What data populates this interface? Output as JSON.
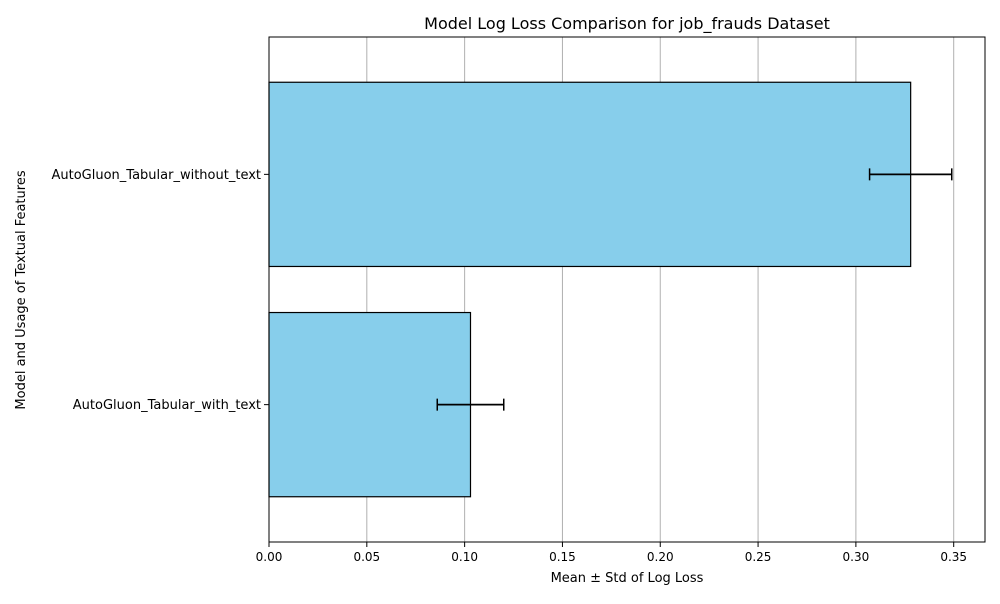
{
  "chart_data": {
    "type": "bar",
    "orientation": "horizontal",
    "title": "Model Log Loss Comparison for job_frauds Dataset",
    "xlabel": "Mean ± Std of Log Loss",
    "ylabel": "Model and Usage of Textual Features",
    "categories": [
      "AutoGluon_Tabular_with_text",
      "AutoGluon_Tabular_without_text"
    ],
    "values": [
      0.103,
      0.328
    ],
    "errors": [
      0.017,
      0.021
    ],
    "xlim": [
      0.0,
      0.366
    ],
    "x_ticks": [
      0.0,
      0.05,
      0.1,
      0.15,
      0.2,
      0.25,
      0.3,
      0.35
    ],
    "x_tick_labels": [
      "0.00",
      "0.05",
      "0.10",
      "0.15",
      "0.20",
      "0.25",
      "0.30",
      "0.35"
    ],
    "grid": "vertical",
    "colors": {
      "bar_fill": "#87CEEB",
      "bar_edge": "#000000",
      "grid": "#b0b0b0",
      "error_bar": "#000000"
    }
  }
}
